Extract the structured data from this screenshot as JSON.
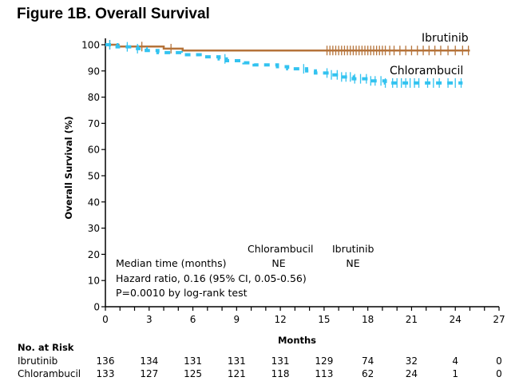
{
  "chart_data": {
    "type": "line",
    "title": "Figure 1B. Overall Survival",
    "xlabel": "Months",
    "ylabel": "Overall Survival (%)",
    "xlim": [
      0,
      27
    ],
    "ylim": [
      0,
      100
    ],
    "xticks": [
      0,
      3,
      6,
      9,
      12,
      15,
      18,
      21,
      24,
      27
    ],
    "yticks": [
      0,
      10,
      20,
      30,
      40,
      50,
      60,
      70,
      80,
      90,
      100
    ],
    "grid": false,
    "series": [
      {
        "name": "Ibrutinib",
        "color": "#b5733a",
        "style": "solid",
        "steps": [
          [
            0,
            100
          ],
          [
            0.9,
            99.3
          ],
          [
            4.0,
            98.5
          ],
          [
            5.3,
            97.8
          ],
          [
            25,
            97.8
          ]
        ],
        "censor_marks": [
          0.3,
          2.5,
          4.5,
          15.2,
          15.4,
          15.6,
          15.8,
          16.0,
          16.2,
          16.4,
          16.6,
          16.8,
          17.0,
          17.2,
          17.4,
          17.6,
          17.8,
          18.0,
          18.2,
          18.4,
          18.6,
          18.8,
          19.0,
          19.2,
          19.5,
          19.8,
          20.2,
          20.6,
          21.0,
          21.4,
          21.8,
          22.2,
          22.6,
          23.0,
          23.5,
          24.0,
          24.5,
          24.9
        ]
      },
      {
        "name": "Chlorambucil",
        "color": "#33c3f0",
        "style": "dashed",
        "steps": [
          [
            0,
            100
          ],
          [
            0.8,
            99.2
          ],
          [
            1.9,
            99.2
          ],
          [
            2.2,
            98.5
          ],
          [
            2.8,
            97.8
          ],
          [
            3.6,
            97.0
          ],
          [
            5.2,
            96.2
          ],
          [
            6.5,
            95.4
          ],
          [
            7.8,
            94.6
          ],
          [
            8.3,
            93.9
          ],
          [
            9.5,
            93.1
          ],
          [
            10.2,
            92.3
          ],
          [
            11.8,
            91.6
          ],
          [
            12.5,
            90.8
          ],
          [
            13.8,
            90.0
          ],
          [
            14.4,
            89.2
          ],
          [
            15.5,
            88.5
          ],
          [
            16.0,
            87.7
          ],
          [
            17.0,
            87.0
          ],
          [
            18.2,
            86.2
          ],
          [
            19.2,
            85.4
          ],
          [
            24.5,
            85.4
          ]
        ],
        "censor_marks": [
          0.3,
          1.5,
          2.2,
          8.2,
          13.6,
          15.2,
          15.5,
          15.9,
          16.2,
          16.5,
          16.8,
          17.1,
          17.5,
          17.9,
          18.2,
          18.5,
          18.9,
          19.2,
          19.7,
          20.0,
          20.3,
          20.6,
          20.9,
          21.2,
          21.5,
          22.1,
          22.5,
          22.9,
          23.5,
          24.0,
          24.4
        ]
      }
    ],
    "legend": [
      {
        "label": "Ibrutinib",
        "placement": "right-end-of-curve"
      },
      {
        "label": "Chlorambucil",
        "placement": "right-end-of-curve"
      }
    ],
    "annotations": {
      "col_header_chlorambucil": "Chlorambucil",
      "col_header_ibrutinib": "Ibrutinib",
      "median_label": "Median time (months)",
      "median_chlorambucil": "NE",
      "median_ibrutinib": "NE",
      "hazard_ratio": "Hazard ratio, 0.16 (95% CI, 0.05-0.56)",
      "p_value": "P=0.0010 by log-rank test"
    },
    "risk_table": {
      "title": "No. at Risk",
      "months_label": "Months",
      "rows": [
        {
          "name": "Ibrutinib",
          "values": [
            136,
            134,
            131,
            131,
            131,
            129,
            74,
            32,
            4,
            0
          ]
        },
        {
          "name": "Chlorambucil",
          "values": [
            133,
            127,
            125,
            121,
            118,
            113,
            62,
            24,
            1,
            0
          ]
        }
      ]
    }
  }
}
